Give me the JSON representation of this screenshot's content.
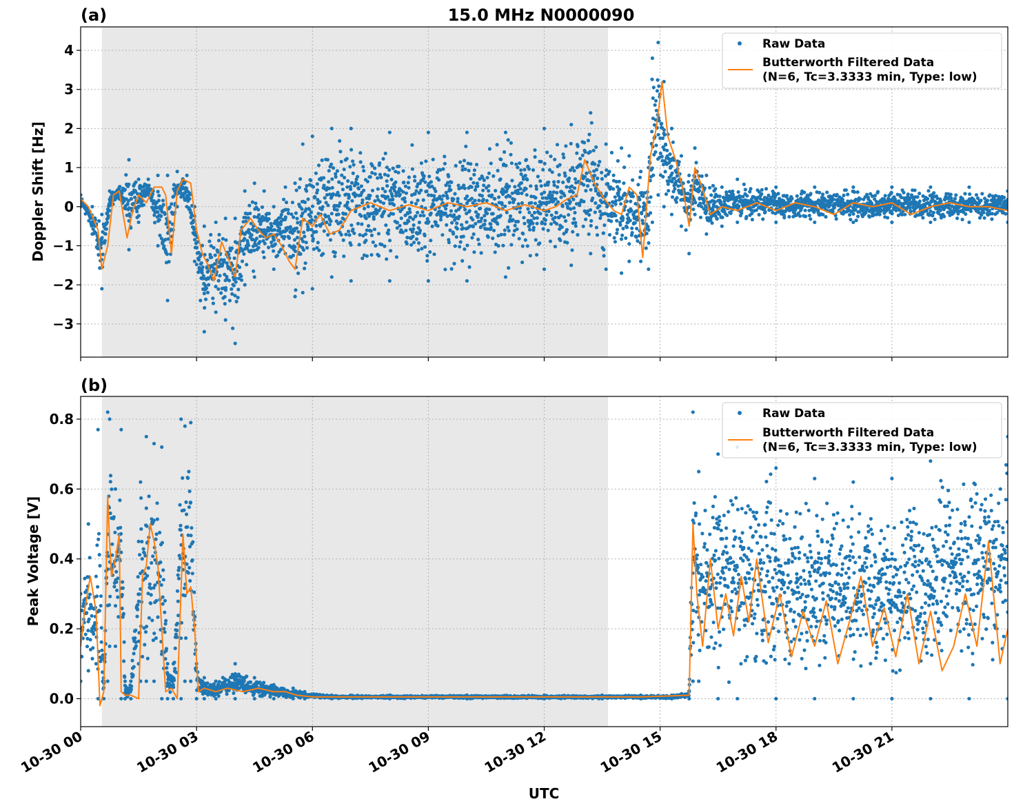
{
  "figure": {
    "title": "15.0 MHz N0000090",
    "xlabel": "UTC",
    "x_tick_labels": [
      "10-30 00",
      "10-30 03",
      "10-30 06",
      "10-30 09",
      "10-30 12",
      "10-30 15",
      "10-30 18",
      "10-30 21"
    ]
  },
  "legend": {
    "raw": "Raw Data",
    "filtered_line1": "Butterworth Filtered Data",
    "filtered_line2": "(N=6, Tc=3.3333 min, Type: low)"
  },
  "colors": {
    "raw": "#1f77b4",
    "filtered": "#ff7f0e",
    "night_shade": "#e8e8e8",
    "grid": "#b0b0b0"
  },
  "chart_data": [
    {
      "type": "scatter",
      "panel_label": "(a)",
      "title": "15.0 MHz N0000090",
      "ylabel": "Doppler Shift [Hz]",
      "xlabel": "",
      "x_unit": "hours UTC on 10-30",
      "xlim": [
        0,
        24
      ],
      "ylim": [
        -3.85,
        4.6
      ],
      "y_ticks": [
        -3,
        -2,
        -1,
        0,
        1,
        2,
        3,
        4
      ],
      "y_tick_labels": [
        "−3",
        "−2",
        "−1",
        "0",
        "1",
        "2",
        "3",
        "4"
      ],
      "grid": true,
      "legend": "top-right",
      "shaded_interval": [
        0.55,
        13.65
      ],
      "series": [
        {
          "name": "Raw Data",
          "kind": "points",
          "envelope": {
            "x": [
              0,
              0.3,
              0.55,
              0.75,
              1.0,
              1.25,
              1.5,
              1.75,
              2.0,
              2.25,
              2.5,
              2.75,
              2.95,
              3.2,
              3.5,
              3.75,
              4.0,
              4.25,
              4.5,
              4.75,
              5.0,
              5.3,
              5.55,
              5.75,
              6.0,
              6.5,
              7.0,
              8.0,
              9.0,
              10.0,
              11.0,
              12.0,
              12.7,
              13.2,
              13.6,
              14.0,
              14.2,
              14.5,
              14.7,
              14.8,
              14.95,
              15.1,
              15.3,
              15.55,
              15.75,
              15.9,
              16.2,
              16.6,
              17.0,
              18.0,
              19.0,
              20.0,
              21.0,
              22.0,
              23.0,
              24.0
            ],
            "low": [
              0.0,
              -0.7,
              -2.1,
              -0.1,
              0.2,
              -1.1,
              -0.4,
              0.3,
              -1.0,
              -2.4,
              0.0,
              0.0,
              -1.4,
              -3.2,
              -2.7,
              -2.9,
              -3.5,
              -2.0,
              -1.8,
              -1.3,
              -1.6,
              -1.2,
              -2.3,
              -2.2,
              -2.1,
              -1.8,
              -1.9,
              -1.9,
              -1.9,
              -1.9,
              -1.8,
              -1.6,
              -1.5,
              -1.2,
              -1.6,
              -1.7,
              -1.4,
              -1.4,
              -1.6,
              -0.4,
              0.3,
              0.0,
              -0.2,
              -0.5,
              -1.2,
              -0.2,
              -0.7,
              -0.5,
              -0.4,
              -0.4,
              -0.4,
              -0.4,
              -0.4,
              -0.4,
              -0.4,
              -0.4
            ],
            "high": [
              0.3,
              0.0,
              -0.2,
              0.4,
              0.5,
              1.2,
              0.7,
              0.7,
              0.8,
              0.8,
              0.9,
              0.8,
              0.0,
              -0.5,
              -0.4,
              -0.3,
              -0.3,
              0.4,
              0.6,
              0.4,
              0.0,
              0.5,
              0.6,
              1.6,
              1.8,
              2.0,
              2.0,
              1.9,
              1.9,
              1.9,
              1.9,
              2.0,
              2.1,
              2.4,
              1.6,
              1.5,
              1.3,
              0.9,
              1.0,
              3.8,
              4.2,
              3.2,
              2.0,
              1.3,
              0.8,
              1.5,
              0.8,
              0.5,
              0.7,
              0.5,
              0.5,
              0.5,
              0.5,
              0.5,
              0.5,
              0.4
            ]
          }
        },
        {
          "name": "Butterworth Filtered Data (N=6, Tc=3.3333 min, Type: low)",
          "kind": "line",
          "x": [
            0,
            0.2,
            0.45,
            0.55,
            0.7,
            0.85,
            1.0,
            1.2,
            1.35,
            1.5,
            1.7,
            1.9,
            2.1,
            2.2,
            2.35,
            2.5,
            2.65,
            2.85,
            3.0,
            3.15,
            3.3,
            3.45,
            3.65,
            3.85,
            4.0,
            4.15,
            4.4,
            4.6,
            4.8,
            5.0,
            5.2,
            5.4,
            5.55,
            5.75,
            6.0,
            6.2,
            6.45,
            6.7,
            7.0,
            7.5,
            8.0,
            8.5,
            9.0,
            9.5,
            10.0,
            10.5,
            11.0,
            11.5,
            12.0,
            12.3,
            12.6,
            12.85,
            13.05,
            13.3,
            13.55,
            13.8,
            14.0,
            14.2,
            14.4,
            14.55,
            14.75,
            14.9,
            15.05,
            15.2,
            15.4,
            15.6,
            15.75,
            15.9,
            16.05,
            16.3,
            16.6,
            17.0,
            17.5,
            18.0,
            18.5,
            19.0,
            19.5,
            20.0,
            20.5,
            21.0,
            21.5,
            22.0,
            22.5,
            23.0,
            23.5,
            24.0
          ],
          "y": [
            0.2,
            0.0,
            -0.6,
            -1.6,
            -1.0,
            0.3,
            0.4,
            -0.8,
            -0.1,
            0.3,
            0.1,
            0.5,
            0.5,
            0.3,
            -1.2,
            0.4,
            0.7,
            0.6,
            -0.6,
            -1.2,
            -1.5,
            -1.9,
            -0.9,
            -1.4,
            -1.8,
            -0.6,
            -0.3,
            -0.6,
            -0.8,
            -0.7,
            -1.0,
            -1.4,
            -1.6,
            -0.3,
            -0.5,
            -0.2,
            -0.7,
            -0.6,
            -0.1,
            0.1,
            -0.1,
            0.05,
            -0.1,
            0.1,
            0.0,
            0.1,
            -0.1,
            0.05,
            -0.1,
            0.0,
            0.2,
            0.3,
            1.2,
            0.6,
            0.2,
            -0.1,
            -0.2,
            0.5,
            0.3,
            -1.3,
            1.3,
            2.0,
            3.2,
            1.8,
            1.2,
            0.4,
            -0.5,
            1.0,
            0.6,
            -0.2,
            0.0,
            -0.1,
            0.1,
            -0.1,
            0.1,
            0.0,
            -0.2,
            0.1,
            0.0,
            0.1,
            -0.2,
            0.0,
            0.1,
            0.0,
            0.0,
            -0.1
          ]
        }
      ]
    },
    {
      "type": "scatter",
      "panel_label": "(b)",
      "title": "",
      "ylabel": "Peak Voltage [V]",
      "xlabel": "UTC",
      "x_unit": "hours UTC on 10-30",
      "xlim": [
        0,
        24
      ],
      "ylim": [
        -0.08,
        0.865
      ],
      "y_ticks": [
        0.0,
        0.2,
        0.4,
        0.6,
        0.8
      ],
      "y_tick_labels": [
        "0.0",
        "0.2",
        "0.4",
        "0.6",
        "0.8"
      ],
      "grid": true,
      "legend": "top-right",
      "shaded_interval": [
        0.55,
        13.65
      ],
      "series": [
        {
          "name": "Raw Data",
          "kind": "points",
          "envelope": {
            "x": [
              0,
              0.2,
              0.4,
              0.45,
              0.6,
              0.7,
              0.75,
              0.9,
              1.05,
              1.15,
              1.3,
              1.5,
              1.55,
              1.7,
              1.9,
              2.1,
              2.25,
              2.4,
              2.6,
              2.7,
              2.85,
              3.0,
              3.2,
              3.5,
              4.0,
              4.5,
              5.0,
              5.5,
              5.8,
              6.5,
              8.0,
              10.0,
              12.0,
              13.5,
              14.5,
              15.3,
              15.75,
              15.85,
              16.0,
              16.5,
              17.0,
              18.0,
              19.0,
              20.0,
              21.0,
              22.0,
              23.0,
              24.0
            ],
            "low": [
              0.05,
              0.08,
              0.1,
              0.0,
              0.0,
              0.05,
              0.15,
              0.15,
              0.0,
              0.0,
              0.0,
              0.1,
              0.05,
              0.05,
              0.05,
              0.0,
              0.0,
              0.0,
              0.0,
              0.05,
              0.05,
              0.0,
              0.0,
              0.0,
              0.0,
              0.0,
              0.0,
              0.0,
              0.0,
              0.0,
              0.0,
              0.0,
              0.0,
              0.0,
              0.0,
              0.0,
              0.0,
              0.05,
              0.05,
              0.0,
              0.0,
              0.0,
              0.0,
              0.0,
              0.0,
              0.0,
              0.0,
              0.0
            ],
            "high": [
              0.3,
              0.5,
              0.35,
              0.77,
              0.05,
              0.82,
              0.8,
              0.6,
              0.77,
              0.05,
              0.05,
              0.45,
              0.62,
              0.75,
              0.73,
              0.72,
              0.1,
              0.1,
              0.8,
              0.78,
              0.79,
              0.1,
              0.06,
              0.05,
              0.1,
              0.06,
              0.04,
              0.03,
              0.02,
              0.01,
              0.01,
              0.01,
              0.01,
              0.01,
              0.01,
              0.01,
              0.02,
              0.82,
              0.65,
              0.7,
              0.72,
              0.66,
              0.63,
              0.62,
              0.63,
              0.68,
              0.72,
              0.75
            ]
          }
        },
        {
          "name": "Butterworth Filtered Data (N=6, Tc=3.3333 min, Type: low)",
          "kind": "line",
          "x": [
            0,
            0.1,
            0.25,
            0.4,
            0.5,
            0.6,
            0.7,
            0.75,
            0.8,
            0.9,
            1.0,
            1.05,
            1.15,
            1.3,
            1.5,
            1.6,
            1.7,
            1.8,
            1.9,
            2.0,
            2.1,
            2.2,
            2.35,
            2.5,
            2.65,
            2.75,
            2.85,
            2.95,
            3.05,
            3.2,
            3.5,
            3.8,
            4.2,
            4.6,
            5.0,
            5.3,
            5.6,
            6.0,
            8.0,
            10.0,
            12.0,
            13.6,
            14.5,
            15.3,
            15.75,
            15.85,
            15.95,
            16.1,
            16.3,
            16.5,
            16.7,
            16.9,
            17.1,
            17.3,
            17.5,
            17.8,
            18.1,
            18.4,
            18.7,
            19.0,
            19.3,
            19.6,
            19.9,
            20.2,
            20.5,
            20.8,
            21.1,
            21.4,
            21.7,
            22.0,
            22.3,
            22.6,
            22.9,
            23.2,
            23.5,
            23.8,
            24.0
          ],
          "y": [
            0.15,
            0.25,
            0.35,
            0.25,
            -0.02,
            0.02,
            0.58,
            0.45,
            0.35,
            0.4,
            0.47,
            0.02,
            0.01,
            0.01,
            0.0,
            0.35,
            0.38,
            0.5,
            0.45,
            0.38,
            0.2,
            0.02,
            0.03,
            0.0,
            0.47,
            0.3,
            0.32,
            0.2,
            0.02,
            0.03,
            0.02,
            0.03,
            0.02,
            0.03,
            0.02,
            0.02,
            0.01,
            0.005,
            0.005,
            0.005,
            0.005,
            0.005,
            0.005,
            0.008,
            0.01,
            0.5,
            0.3,
            0.15,
            0.4,
            0.2,
            0.3,
            0.18,
            0.35,
            0.22,
            0.4,
            0.16,
            0.3,
            0.12,
            0.25,
            0.15,
            0.28,
            0.1,
            0.22,
            0.35,
            0.15,
            0.26,
            0.12,
            0.3,
            0.1,
            0.25,
            0.08,
            0.15,
            0.3,
            0.15,
            0.45,
            0.1,
            0.2
          ]
        }
      ]
    }
  ]
}
